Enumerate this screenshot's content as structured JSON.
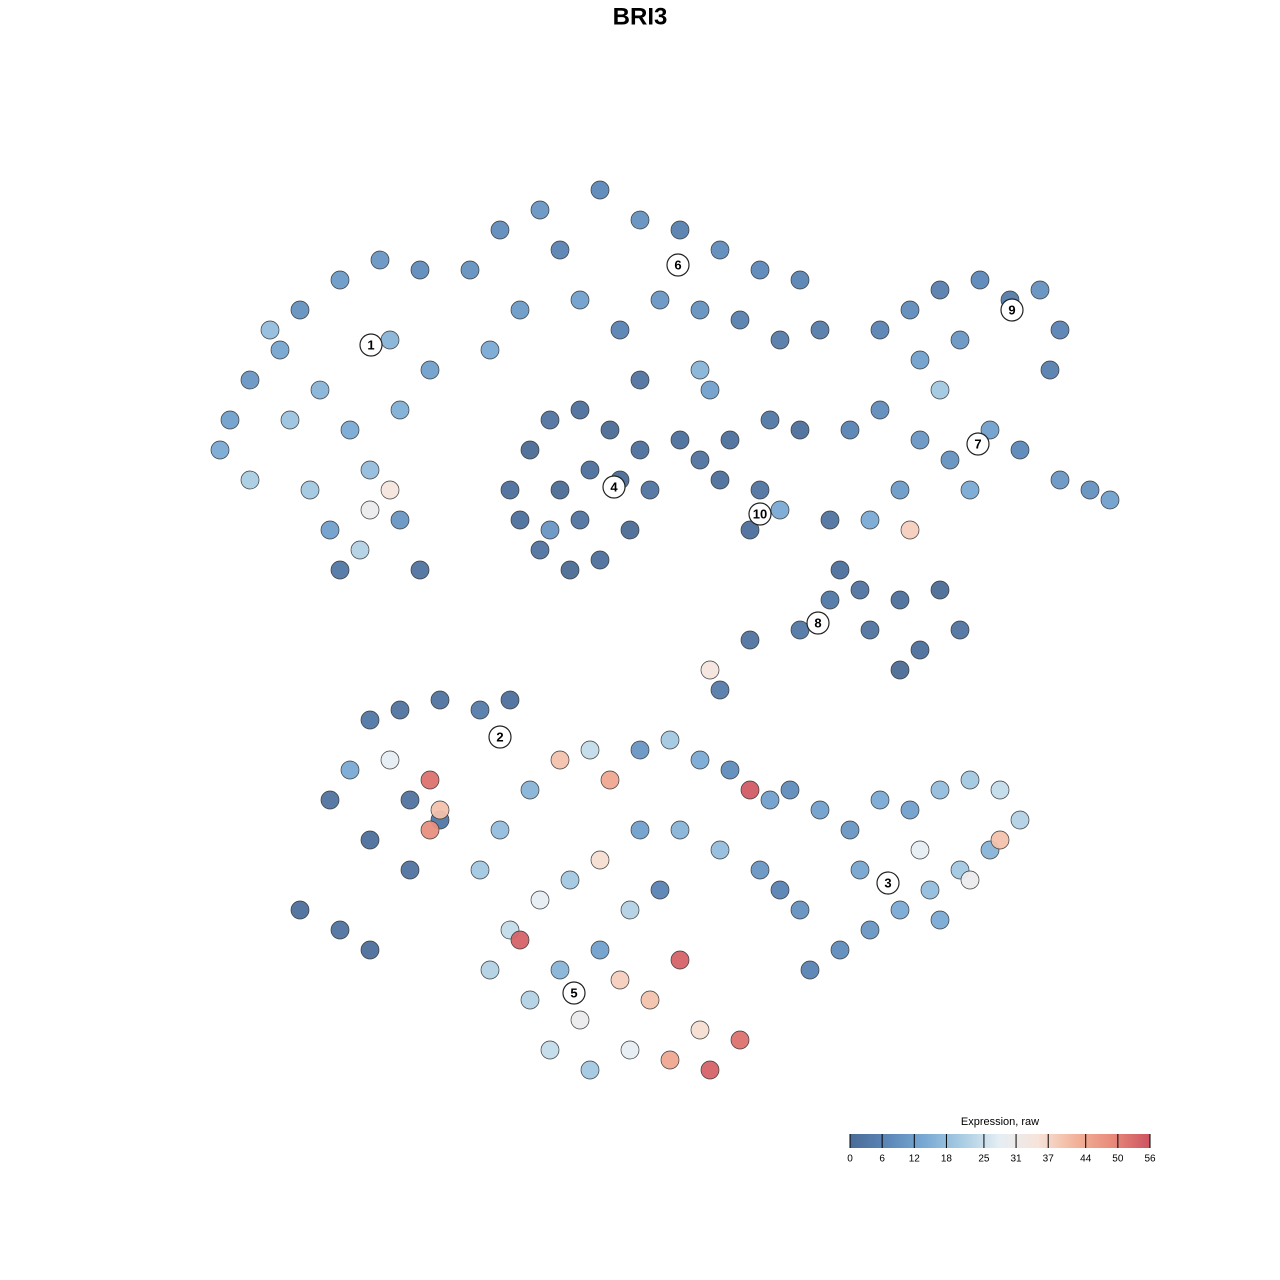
{
  "chart_data": {
    "type": "scatter",
    "title": "BRI3",
    "xlim": [
      0,
      100
    ],
    "ylim": [
      0,
      100
    ],
    "colorbar": {
      "title": "Expression, raw",
      "ticks": [
        0,
        6,
        12,
        18,
        25,
        31,
        37,
        44,
        50,
        56
      ],
      "colors": [
        "#4a6b96",
        "#5b87b8",
        "#79aad4",
        "#a9cde3",
        "#e6eef4",
        "#f7e4da",
        "#f2b49a",
        "#e88a7a",
        "#cd5360"
      ]
    },
    "clusters": [
      {
        "label": "1",
        "x": 17.1,
        "y": 80.5
      },
      {
        "label": "2",
        "x": 30,
        "y": 41.3
      },
      {
        "label": "3",
        "x": 68.8,
        "y": 26.7
      },
      {
        "label": "4",
        "x": 41.4,
        "y": 66.3
      },
      {
        "label": "5",
        "x": 37.4,
        "y": 15.7
      },
      {
        "label": "6",
        "x": 47.8,
        "y": 88.5
      },
      {
        "label": "7",
        "x": 77.8,
        "y": 70.6
      },
      {
        "label": "8",
        "x": 61.8,
        "y": 52.7
      },
      {
        "label": "9",
        "x": 81.2,
        "y": 84
      },
      {
        "label": "10",
        "x": 56,
        "y": 63.6
      }
    ],
    "points": [
      {
        "x": 3,
        "y": 73,
        "value": 12
      },
      {
        "x": 5,
        "y": 77,
        "value": 10
      },
      {
        "x": 2,
        "y": 70,
        "value": 14
      },
      {
        "x": 8,
        "y": 80,
        "value": 13
      },
      {
        "x": 10,
        "y": 84,
        "value": 9
      },
      {
        "x": 14,
        "y": 87,
        "value": 11
      },
      {
        "x": 18,
        "y": 89,
        "value": 10
      },
      {
        "x": 22,
        "y": 88,
        "value": 8
      },
      {
        "x": 12,
        "y": 76,
        "value": 16
      },
      {
        "x": 15,
        "y": 72,
        "value": 14
      },
      {
        "x": 17,
        "y": 68,
        "value": 18
      },
      {
        "x": 20,
        "y": 74,
        "value": 15
      },
      {
        "x": 11,
        "y": 66,
        "value": 20
      },
      {
        "x": 13,
        "y": 62,
        "value": 12
      },
      {
        "x": 16,
        "y": 60,
        "value": 22
      },
      {
        "x": 20,
        "y": 63,
        "value": 10
      },
      {
        "x": 22,
        "y": 58,
        "value": 2
      },
      {
        "x": 14,
        "y": 58,
        "value": 3
      },
      {
        "x": 7,
        "y": 82,
        "value": 18
      },
      {
        "x": 19,
        "y": 81,
        "value": 16
      },
      {
        "x": 23,
        "y": 78,
        "value": 12
      },
      {
        "x": 9,
        "y": 73,
        "value": 19
      },
      {
        "x": 19,
        "y": 66,
        "value": 34
      },
      {
        "x": 17,
        "y": 64,
        "value": 30
      },
      {
        "x": 5,
        "y": 67,
        "value": 21
      },
      {
        "x": 27,
        "y": 88,
        "value": 9
      },
      {
        "x": 30,
        "y": 92,
        "value": 8
      },
      {
        "x": 34,
        "y": 94,
        "value": 10
      },
      {
        "x": 36,
        "y": 90,
        "value": 6
      },
      {
        "x": 40,
        "y": 96,
        "value": 7
      },
      {
        "x": 44,
        "y": 93,
        "value": 9
      },
      {
        "x": 48,
        "y": 92,
        "value": 5
      },
      {
        "x": 52,
        "y": 90,
        "value": 8
      },
      {
        "x": 56,
        "y": 88,
        "value": 7
      },
      {
        "x": 60,
        "y": 87,
        "value": 6
      },
      {
        "x": 62,
        "y": 82,
        "value": 4
      },
      {
        "x": 46,
        "y": 85,
        "value": 10
      },
      {
        "x": 38,
        "y": 85,
        "value": 12
      },
      {
        "x": 32,
        "y": 84,
        "value": 11
      },
      {
        "x": 29,
        "y": 80,
        "value": 14
      },
      {
        "x": 42,
        "y": 82,
        "value": 6
      },
      {
        "x": 50,
        "y": 84,
        "value": 9
      },
      {
        "x": 54,
        "y": 83,
        "value": 5
      },
      {
        "x": 58,
        "y": 81,
        "value": 4
      },
      {
        "x": 50,
        "y": 78,
        "value": 16
      },
      {
        "x": 51,
        "y": 76,
        "value": 12
      },
      {
        "x": 44,
        "y": 77,
        "value": 2
      },
      {
        "x": 68,
        "y": 82,
        "value": 6
      },
      {
        "x": 71,
        "y": 84,
        "value": 8
      },
      {
        "x": 74,
        "y": 86,
        "value": 5
      },
      {
        "x": 78,
        "y": 87,
        "value": 7
      },
      {
        "x": 81,
        "y": 85,
        "value": 4
      },
      {
        "x": 84,
        "y": 86,
        "value": 9
      },
      {
        "x": 86,
        "y": 82,
        "value": 6
      },
      {
        "x": 85,
        "y": 78,
        "value": 5
      },
      {
        "x": 76,
        "y": 81,
        "value": 10
      },
      {
        "x": 72,
        "y": 79,
        "value": 12
      },
      {
        "x": 65,
        "y": 72,
        "value": 6
      },
      {
        "x": 68,
        "y": 74,
        "value": 8
      },
      {
        "x": 72,
        "y": 71,
        "value": 10
      },
      {
        "x": 75,
        "y": 69,
        "value": 9
      },
      {
        "x": 79,
        "y": 72,
        "value": 12
      },
      {
        "x": 82,
        "y": 70,
        "value": 7
      },
      {
        "x": 86,
        "y": 67,
        "value": 10
      },
      {
        "x": 89,
        "y": 66,
        "value": 9
      },
      {
        "x": 91,
        "y": 65,
        "value": 12
      },
      {
        "x": 77,
        "y": 66,
        "value": 14
      },
      {
        "x": 74,
        "y": 76,
        "value": 20
      },
      {
        "x": 70,
        "y": 66,
        "value": 11
      },
      {
        "x": 67,
        "y": 63,
        "value": 14
      },
      {
        "x": 71,
        "y": 62,
        "value": 38
      },
      {
        "x": 31,
        "y": 66,
        "value": 1
      },
      {
        "x": 33,
        "y": 70,
        "value": 0
      },
      {
        "x": 35,
        "y": 73,
        "value": 2
      },
      {
        "x": 38,
        "y": 74,
        "value": 1
      },
      {
        "x": 41,
        "y": 72,
        "value": 0
      },
      {
        "x": 44,
        "y": 70,
        "value": 1
      },
      {
        "x": 45,
        "y": 66,
        "value": 2
      },
      {
        "x": 43,
        "y": 62,
        "value": 0
      },
      {
        "x": 40,
        "y": 59,
        "value": 1
      },
      {
        "x": 37,
        "y": 58,
        "value": 0
      },
      {
        "x": 34,
        "y": 60,
        "value": 2
      },
      {
        "x": 32,
        "y": 63,
        "value": 1
      },
      {
        "x": 36,
        "y": 66,
        "value": 0
      },
      {
        "x": 39,
        "y": 68,
        "value": 1
      },
      {
        "x": 42,
        "y": 67,
        "value": 0
      },
      {
        "x": 38,
        "y": 63,
        "value": 2
      },
      {
        "x": 35,
        "y": 62,
        "value": 10
      },
      {
        "x": 48,
        "y": 71,
        "value": 1
      },
      {
        "x": 50,
        "y": 69,
        "value": 2
      },
      {
        "x": 53,
        "y": 71,
        "value": 1
      },
      {
        "x": 57,
        "y": 73,
        "value": 3
      },
      {
        "x": 60,
        "y": 72,
        "value": 1
      },
      {
        "x": 56,
        "y": 66,
        "value": 2
      },
      {
        "x": 55,
        "y": 62,
        "value": 1
      },
      {
        "x": 58,
        "y": 64,
        "value": 14
      },
      {
        "x": 52,
        "y": 67,
        "value": 1
      },
      {
        "x": 63,
        "y": 63,
        "value": 2
      },
      {
        "x": 64,
        "y": 58,
        "value": 1
      },
      {
        "x": 63,
        "y": 55,
        "value": 3
      },
      {
        "x": 66,
        "y": 56,
        "value": 2
      },
      {
        "x": 70,
        "y": 55,
        "value": 1
      },
      {
        "x": 74,
        "y": 56,
        "value": 0
      },
      {
        "x": 76,
        "y": 52,
        "value": 2
      },
      {
        "x": 72,
        "y": 50,
        "value": 1
      },
      {
        "x": 70,
        "y": 48,
        "value": 0
      },
      {
        "x": 67,
        "y": 52,
        "value": 2
      },
      {
        "x": 60,
        "y": 52,
        "value": 3
      },
      {
        "x": 55,
        "y": 51,
        "value": 2
      },
      {
        "x": 52,
        "y": 46,
        "value": 4
      },
      {
        "x": 51,
        "y": 48,
        "value": 34
      },
      {
        "x": 17,
        "y": 43,
        "value": 3
      },
      {
        "x": 20,
        "y": 44,
        "value": 2
      },
      {
        "x": 24,
        "y": 45,
        "value": 2
      },
      {
        "x": 28,
        "y": 44,
        "value": 4
      },
      {
        "x": 31,
        "y": 45,
        "value": 1
      },
      {
        "x": 15,
        "y": 38,
        "value": 14
      },
      {
        "x": 19,
        "y": 39,
        "value": 28
      },
      {
        "x": 21,
        "y": 35,
        "value": 2
      },
      {
        "x": 23,
        "y": 37,
        "value": 52
      },
      {
        "x": 24,
        "y": 33,
        "value": 3
      },
      {
        "x": 13,
        "y": 35,
        "value": 2
      },
      {
        "x": 17,
        "y": 31,
        "value": 1
      },
      {
        "x": 21,
        "y": 28,
        "value": 2
      },
      {
        "x": 10,
        "y": 24,
        "value": 1
      },
      {
        "x": 14,
        "y": 22,
        "value": 2
      },
      {
        "x": 17,
        "y": 20,
        "value": 1
      },
      {
        "x": 23,
        "y": 32,
        "value": 48
      },
      {
        "x": 24,
        "y": 34,
        "value": 40
      },
      {
        "x": 59,
        "y": 36,
        "value": 8
      },
      {
        "x": 62,
        "y": 34,
        "value": 12
      },
      {
        "x": 65,
        "y": 32,
        "value": 10
      },
      {
        "x": 68,
        "y": 35,
        "value": 14
      },
      {
        "x": 71,
        "y": 34,
        "value": 12
      },
      {
        "x": 74,
        "y": 36,
        "value": 18
      },
      {
        "x": 77,
        "y": 37,
        "value": 20
      },
      {
        "x": 80,
        "y": 36,
        "value": 24
      },
      {
        "x": 82,
        "y": 33,
        "value": 22
      },
      {
        "x": 79,
        "y": 30,
        "value": 16
      },
      {
        "x": 76,
        "y": 28,
        "value": 20
      },
      {
        "x": 73,
        "y": 26,
        "value": 18
      },
      {
        "x": 70,
        "y": 24,
        "value": 14
      },
      {
        "x": 67,
        "y": 22,
        "value": 10
      },
      {
        "x": 64,
        "y": 20,
        "value": 8
      },
      {
        "x": 61,
        "y": 18,
        "value": 6
      },
      {
        "x": 60,
        "y": 24,
        "value": 9
      },
      {
        "x": 66,
        "y": 28,
        "value": 13
      },
      {
        "x": 72,
        "y": 30,
        "value": 28
      },
      {
        "x": 80,
        "y": 31,
        "value": 40
      },
      {
        "x": 74,
        "y": 23,
        "value": 14
      },
      {
        "x": 77,
        "y": 27,
        "value": 30
      },
      {
        "x": 28,
        "y": 28,
        "value": 20
      },
      {
        "x": 30,
        "y": 32,
        "value": 18
      },
      {
        "x": 33,
        "y": 36,
        "value": 16
      },
      {
        "x": 36,
        "y": 39,
        "value": 40
      },
      {
        "x": 39,
        "y": 40,
        "value": 24
      },
      {
        "x": 41,
        "y": 37,
        "value": 44
      },
      {
        "x": 44,
        "y": 40,
        "value": 10
      },
      {
        "x": 47,
        "y": 41,
        "value": 20
      },
      {
        "x": 50,
        "y": 39,
        "value": 14
      },
      {
        "x": 53,
        "y": 38,
        "value": 8
      },
      {
        "x": 55,
        "y": 36,
        "value": 55
      },
      {
        "x": 57,
        "y": 35,
        "value": 12
      },
      {
        "x": 31,
        "y": 22,
        "value": 24
      },
      {
        "x": 34,
        "y": 25,
        "value": 28
      },
      {
        "x": 37,
        "y": 27,
        "value": 20
      },
      {
        "x": 40,
        "y": 29,
        "value": 36
      },
      {
        "x": 43,
        "y": 24,
        "value": 22
      },
      {
        "x": 46,
        "y": 26,
        "value": 6
      },
      {
        "x": 48,
        "y": 19,
        "value": 54
      },
      {
        "x": 45,
        "y": 15,
        "value": 40
      },
      {
        "x": 42,
        "y": 17,
        "value": 38
      },
      {
        "x": 38,
        "y": 13,
        "value": 30
      },
      {
        "x": 35,
        "y": 10,
        "value": 24
      },
      {
        "x": 39,
        "y": 8,
        "value": 20
      },
      {
        "x": 43,
        "y": 10,
        "value": 28
      },
      {
        "x": 47,
        "y": 9,
        "value": 44
      },
      {
        "x": 50,
        "y": 12,
        "value": 36
      },
      {
        "x": 51,
        "y": 8,
        "value": 54
      },
      {
        "x": 54,
        "y": 11,
        "value": 52
      },
      {
        "x": 32,
        "y": 21,
        "value": 54
      },
      {
        "x": 29,
        "y": 18,
        "value": 22
      },
      {
        "x": 40,
        "y": 20,
        "value": 12
      },
      {
        "x": 36,
        "y": 18,
        "value": 16
      },
      {
        "x": 33,
        "y": 15,
        "value": 22
      },
      {
        "x": 44,
        "y": 32,
        "value": 12
      },
      {
        "x": 48,
        "y": 32,
        "value": 16
      },
      {
        "x": 52,
        "y": 30,
        "value": 18
      },
      {
        "x": 56,
        "y": 28,
        "value": 10
      },
      {
        "x": 58,
        "y": 26,
        "value": 6
      }
    ]
  }
}
